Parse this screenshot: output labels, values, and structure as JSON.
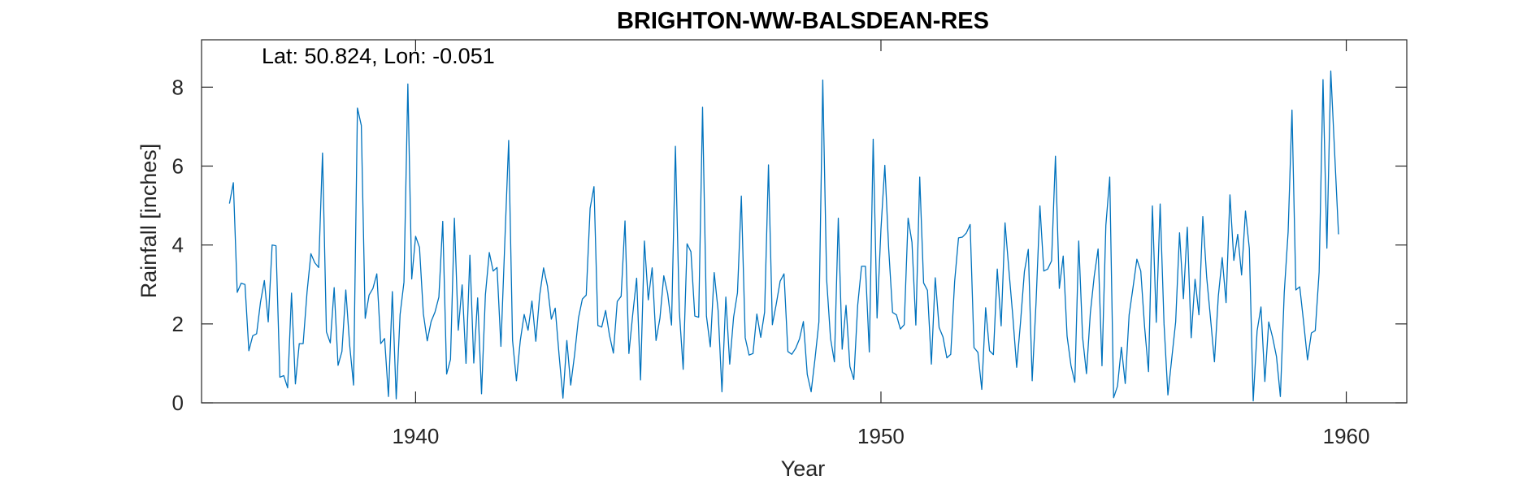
{
  "chart_data": {
    "type": "line",
    "title": "BRIGHTON-WW-BALSDEAN-RES",
    "xlabel": "Year",
    "ylabel": "Rainfall [inches]",
    "annotation": "Lat: 50.824, Lon: -0.051",
    "xlim": [
      1935.4,
      1961.3
    ],
    "ylim": [
      0,
      9.2
    ],
    "xticks": [
      1940,
      1950,
      1960
    ],
    "yticks": [
      0,
      2,
      4,
      6,
      8
    ],
    "grid": false,
    "color": "#0072BD",
    "x_start": 1936.0,
    "x_step": 0.0833333,
    "series": [
      {
        "values": [
          5.05,
          5.58,
          2.8,
          3.03,
          3.0,
          1.32,
          1.7,
          1.75,
          2.55,
          3.1,
          2.05,
          4.0,
          3.98,
          0.65,
          0.69,
          0.38,
          2.78,
          0.48,
          1.5,
          1.5,
          2.8,
          3.78,
          3.55,
          3.43,
          6.33,
          1.8,
          1.52,
          2.92,
          0.95,
          1.3,
          2.86,
          1.46,
          0.45,
          7.47,
          7.03,
          2.14,
          2.73,
          2.9,
          3.27,
          1.5,
          1.63,
          0.16,
          2.82,
          0.1,
          2.24,
          3.06,
          8.08,
          3.14,
          4.22,
          3.94,
          2.26,
          1.57,
          2.06,
          2.3,
          2.68,
          4.6,
          0.73,
          1.1,
          4.68,
          1.84,
          2.99,
          1.0,
          3.74,
          1.01,
          2.66,
          0.23,
          2.74,
          3.81,
          3.34,
          3.43,
          1.43,
          4.06,
          6.65,
          1.58,
          0.56,
          1.58,
          2.24,
          1.84,
          2.58,
          1.56,
          2.73,
          3.42,
          2.96,
          2.12,
          2.4,
          1.21,
          0.12,
          1.58,
          0.45,
          1.22,
          2.15,
          2.63,
          2.73,
          4.93,
          5.48,
          1.96,
          1.92,
          2.34,
          1.71,
          1.26,
          2.57,
          2.7,
          4.61,
          1.25,
          2.25,
          3.16,
          0.58,
          4.1,
          2.61,
          3.42,
          1.58,
          2.14,
          3.22,
          2.77,
          1.97,
          6.5,
          2.33,
          0.85,
          4.03,
          3.83,
          2.2,
          2.17,
          7.49,
          2.2,
          1.42,
          3.3,
          2.35,
          0.28,
          2.68,
          0.98,
          2.17,
          2.79,
          5.24,
          1.65,
          1.21,
          1.25,
          2.25,
          1.66,
          2.3,
          6.03,
          1.98,
          2.5,
          3.08,
          3.27,
          1.3,
          1.23,
          1.38,
          1.62,
          2.06,
          0.72,
          0.28,
          1.12,
          2.05,
          8.18,
          3.12,
          1.63,
          1.04,
          4.68,
          1.36,
          2.47,
          0.92,
          0.59,
          2.47,
          3.46,
          3.46,
          1.29,
          6.68,
          2.15,
          4.4,
          6.02,
          3.9,
          2.29,
          2.23,
          1.87,
          1.98,
          4.68,
          4.07,
          1.97,
          5.72,
          3.04,
          2.85,
          0.98,
          3.17,
          1.91,
          1.67,
          1.14,
          1.23,
          3.07,
          4.18,
          4.2,
          4.3,
          4.52,
          1.4,
          1.28,
          0.34,
          2.41,
          1.32,
          1.22,
          3.39,
          1.95,
          4.56,
          3.36,
          2.2,
          0.9,
          2.05,
          3.33,
          3.89,
          0.56,
          2.55,
          4.99,
          3.34,
          3.39,
          3.6,
          6.25,
          2.9,
          3.72,
          1.69,
          0.95,
          0.52,
          4.1,
          1.66,
          0.74,
          2.28,
          3.21,
          3.9,
          0.94,
          4.5,
          5.72,
          0.13,
          0.42,
          1.41,
          0.49,
          2.23,
          2.92,
          3.64,
          3.34,
          1.91,
          0.79,
          4.99,
          2.04,
          5.04,
          2.0,
          0.2,
          1.13,
          2.05,
          4.31,
          2.64,
          4.45,
          1.65,
          3.13,
          2.23,
          4.72,
          3.18,
          2.13,
          1.04,
          2.7,
          3.68,
          2.54,
          5.27,
          3.61,
          4.27,
          3.24,
          4.86,
          3.91,
          0.05,
          1.82,
          2.43,
          0.54,
          2.05,
          1.66,
          1.17,
          0.16,
          2.79,
          4.33,
          7.42,
          2.86,
          2.94,
          2.04,
          1.09,
          1.77,
          1.83,
          3.32,
          8.19,
          3.92,
          8.41,
          6.33,
          4.27
        ]
      }
    ]
  }
}
